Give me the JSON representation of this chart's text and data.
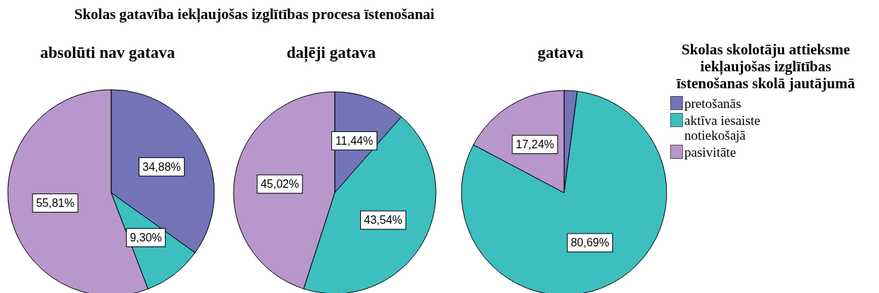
{
  "chart_data": [
    {
      "type": "pie",
      "title": "Skolas gatavība iekļaujošas izglītības procesa īstenošanai",
      "subtitle": "absolūti nav gatava",
      "categories": [
        null,
        null,
        null
      ],
      "values": [
        34.88,
        9.3,
        55.81
      ],
      "value_labels": [
        "34,88%",
        "9,30%",
        "55,81%"
      ],
      "colors": [
        "#7373b8",
        "#3dbfbf",
        "#b897cc"
      ]
    },
    {
      "type": "pie",
      "title": "daļēji gatava",
      "categories": [
        null,
        null,
        null
      ],
      "values": [
        11.44,
        43.54,
        45.02
      ],
      "value_labels": [
        "11,44%",
        "43,54%",
        "45,02%"
      ],
      "colors": [
        "#7373b8",
        "#3dbfbf",
        "#b897cc"
      ]
    },
    {
      "type": "pie",
      "title": "gatava",
      "legend_title": "Skolas skolotāju attieksme iekļaujošas izglītības īstenošanas skolā jautājumā",
      "legend": "right",
      "categories": [
        "pretošanās",
        "aktīva iesaiste notiekošajā",
        "pasivitāte"
      ],
      "values": [
        2.07,
        80.69,
        17.24
      ],
      "value_labels": [
        null,
        "80,69%",
        "17,24%"
      ],
      "colors": [
        "#7373b8",
        "#3dbfbf",
        "#b897cc"
      ]
    }
  ]
}
